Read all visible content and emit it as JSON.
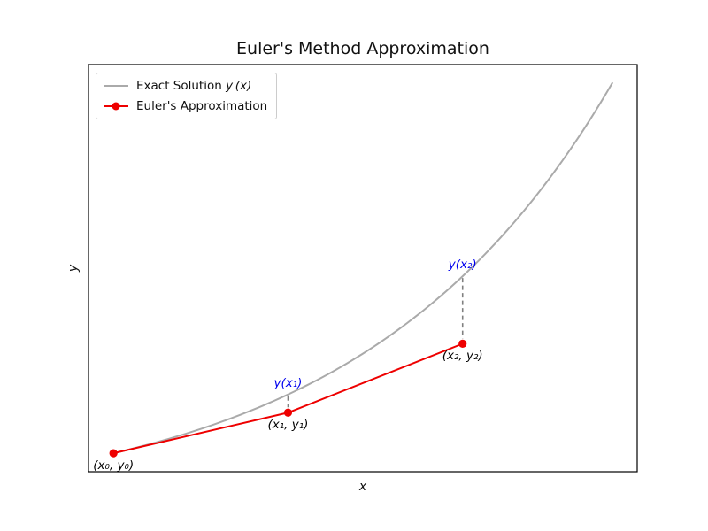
{
  "figure": {
    "background": "#ffffff",
    "frame_color": "#000000"
  },
  "legend": {
    "exact_prefix": "Exact Solution ",
    "exact_math": "y (x)",
    "euler_label": "Euler's Approximation"
  },
  "chart_data": {
    "type": "line",
    "title": "Euler's Method Approximation",
    "xlabel": "x",
    "ylabel": "y",
    "xlim": [
      -0.1,
      2.1
    ],
    "ylim": [
      0.6805,
      7.7085
    ],
    "grid": false,
    "ticks": "none",
    "legend_position": "upper left",
    "step_size": 0.7,
    "exact_solution": "y(x) = e^x",
    "series": [
      {
        "name": "Exact Solution y(x)",
        "kind": "curve",
        "function": "exp(x)",
        "x_range": [
          0,
          2
        ],
        "color": "#aaaaaa",
        "linewidth": 2
      },
      {
        "name": "Euler's Approximation",
        "kind": "line+marker",
        "x": [
          0,
          0.7,
          1.4
        ],
        "y": [
          1,
          1.7,
          2.89
        ],
        "color": "#ee0000",
        "linewidth": 2,
        "marker": "circle"
      }
    ],
    "dashed_drops": [
      {
        "x": 0.7,
        "from_y": 2.0138,
        "to_y": 1.7
      },
      {
        "x": 1.4,
        "from_y": 4.0552,
        "to_y": 2.89
      }
    ],
    "dash_color": "#808080",
    "annotations": [
      {
        "text": "(x₀, y₀)",
        "x": 0,
        "y": 1,
        "color": "#000000",
        "placement": "below"
      },
      {
        "text": "(x₁, y₁)",
        "x": 0.7,
        "y": 1.7,
        "color": "#000000",
        "placement": "below"
      },
      {
        "text": "(x₂, y₂)",
        "x": 1.4,
        "y": 2.89,
        "color": "#000000",
        "placement": "below"
      },
      {
        "text": "y(x₁)",
        "x": 0.7,
        "y": 2.0138,
        "color": "#0000ee",
        "placement": "above"
      },
      {
        "text": "y(x₂)",
        "x": 1.4,
        "y": 4.0552,
        "color": "#0000ee",
        "placement": "above"
      }
    ]
  }
}
